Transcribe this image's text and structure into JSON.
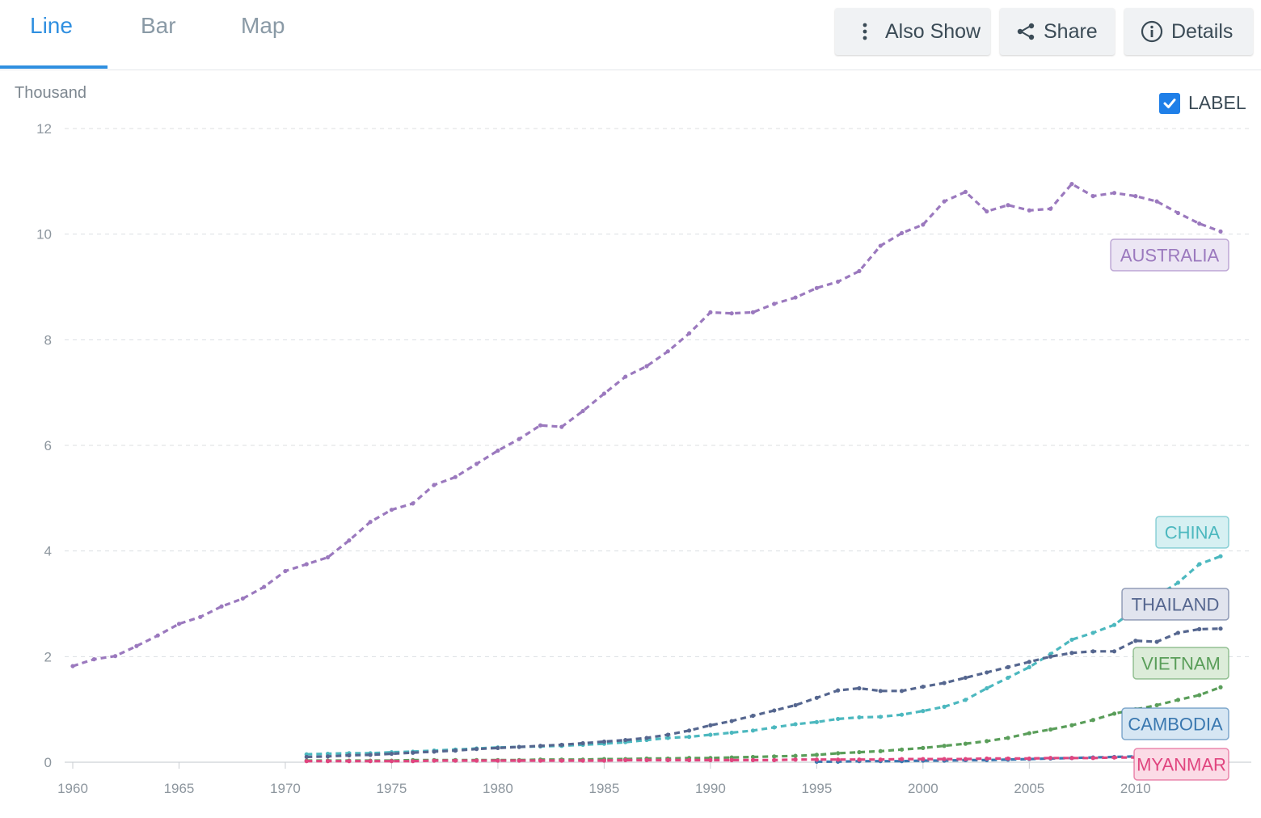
{
  "tabs": [
    {
      "label": "Line",
      "active": true
    },
    {
      "label": "Bar",
      "active": false
    },
    {
      "label": "Map",
      "active": false
    }
  ],
  "actions": {
    "also_show": "Also Show",
    "share": "Share",
    "details": "Details"
  },
  "label_toggle": {
    "label": "LABEL",
    "checked": true
  },
  "chart_data": {
    "type": "line",
    "unit": "Thousand",
    "ylim": [
      0,
      12
    ],
    "yticks": [
      0,
      2,
      4,
      6,
      8,
      10,
      12
    ],
    "xlim": [
      1960,
      2014
    ],
    "xticks": [
      1960,
      1965,
      1970,
      1975,
      1980,
      1985,
      1990,
      1995,
      2000,
      2005,
      2010
    ],
    "grid": true,
    "series": [
      {
        "name": "AUSTRALIA",
        "color": "#9b79be",
        "label_bg": "#ece6f4",
        "x": [
          1960,
          1961,
          1962,
          1963,
          1964,
          1965,
          1966,
          1967,
          1968,
          1969,
          1970,
          1971,
          1972,
          1973,
          1974,
          1975,
          1976,
          1977,
          1978,
          1979,
          1980,
          1981,
          1982,
          1983,
          1984,
          1985,
          1986,
          1987,
          1988,
          1989,
          1990,
          1991,
          1992,
          1993,
          1994,
          1995,
          1996,
          1997,
          1998,
          1999,
          2000,
          2001,
          2002,
          2003,
          2004,
          2005,
          2006,
          2007,
          2008,
          2009,
          2010,
          2011,
          2012,
          2013,
          2014
        ],
        "y": [
          1.82,
          1.95,
          2.01,
          2.2,
          2.4,
          2.62,
          2.75,
          2.95,
          3.1,
          3.32,
          3.62,
          3.75,
          3.88,
          4.2,
          4.55,
          4.78,
          4.9,
          5.25,
          5.4,
          5.65,
          5.9,
          6.12,
          6.38,
          6.35,
          6.65,
          6.98,
          7.3,
          7.5,
          7.78,
          8.12,
          8.52,
          8.5,
          8.52,
          8.68,
          8.8,
          8.98,
          9.1,
          9.3,
          9.78,
          10.02,
          10.18,
          10.62,
          10.8,
          10.43,
          10.55,
          10.45,
          10.48,
          10.95,
          10.72,
          10.78,
          10.72,
          10.62,
          10.4,
          10.2,
          10.05
        ]
      },
      {
        "name": "CHINA",
        "color": "#4cb8bf",
        "label_bg": "#d6f0f2",
        "x": [
          1971,
          1972,
          1973,
          1974,
          1975,
          1976,
          1977,
          1978,
          1979,
          1980,
          1981,
          1982,
          1983,
          1984,
          1985,
          1986,
          1987,
          1988,
          1989,
          1990,
          1991,
          1992,
          1993,
          1994,
          1995,
          1996,
          1997,
          1998,
          1999,
          2000,
          2001,
          2002,
          2003,
          2004,
          2005,
          2006,
          2007,
          2008,
          2009,
          2010,
          2011,
          2012,
          2013,
          2014
        ],
        "y": [
          0.15,
          0.16,
          0.17,
          0.17,
          0.19,
          0.2,
          0.22,
          0.24,
          0.26,
          0.28,
          0.29,
          0.3,
          0.31,
          0.33,
          0.35,
          0.38,
          0.42,
          0.46,
          0.48,
          0.52,
          0.56,
          0.6,
          0.66,
          0.72,
          0.76,
          0.82,
          0.85,
          0.86,
          0.9,
          0.97,
          1.05,
          1.18,
          1.4,
          1.6,
          1.8,
          2.05,
          2.32,
          2.45,
          2.6,
          2.9,
          3.15,
          3.4,
          3.75,
          3.9
        ]
      },
      {
        "name": "THAILAND",
        "color": "#55668f",
        "label_bg": "#e1e4ee",
        "x": [
          1971,
          1972,
          1973,
          1974,
          1975,
          1976,
          1977,
          1978,
          1979,
          1980,
          1981,
          1982,
          1983,
          1984,
          1985,
          1986,
          1987,
          1988,
          1989,
          1990,
          1991,
          1992,
          1993,
          1994,
          1995,
          1996,
          1997,
          1998,
          1999,
          2000,
          2001,
          2002,
          2003,
          2004,
          2005,
          2006,
          2007,
          2008,
          2009,
          2010,
          2011,
          2012,
          2013,
          2014
        ],
        "y": [
          0.1,
          0.11,
          0.13,
          0.14,
          0.16,
          0.18,
          0.2,
          0.22,
          0.25,
          0.27,
          0.29,
          0.31,
          0.33,
          0.36,
          0.39,
          0.42,
          0.46,
          0.52,
          0.6,
          0.7,
          0.78,
          0.88,
          0.98,
          1.08,
          1.22,
          1.36,
          1.4,
          1.35,
          1.35,
          1.43,
          1.5,
          1.6,
          1.7,
          1.8,
          1.9,
          2.0,
          2.07,
          2.1,
          2.1,
          2.3,
          2.28,
          2.45,
          2.52,
          2.53
        ]
      },
      {
        "name": "VIETNAM",
        "color": "#5a9e5a",
        "label_bg": "#dcecd9",
        "x": [
          1971,
          1972,
          1973,
          1974,
          1975,
          1976,
          1977,
          1978,
          1979,
          1980,
          1981,
          1982,
          1983,
          1984,
          1985,
          1986,
          1987,
          1988,
          1989,
          1990,
          1991,
          1992,
          1993,
          1994,
          1995,
          1996,
          1997,
          1998,
          1999,
          2000,
          2001,
          2002,
          2003,
          2004,
          2005,
          2006,
          2007,
          2008,
          2009,
          2010,
          2011,
          2012,
          2013,
          2014
        ],
        "y": [
          0.03,
          0.03,
          0.03,
          0.03,
          0.03,
          0.04,
          0.04,
          0.04,
          0.04,
          0.04,
          0.04,
          0.05,
          0.05,
          0.05,
          0.06,
          0.06,
          0.07,
          0.07,
          0.08,
          0.08,
          0.09,
          0.1,
          0.11,
          0.12,
          0.14,
          0.17,
          0.19,
          0.21,
          0.24,
          0.27,
          0.31,
          0.35,
          0.4,
          0.46,
          0.55,
          0.62,
          0.7,
          0.8,
          0.92,
          1.0,
          1.08,
          1.18,
          1.27,
          1.42
        ]
      },
      {
        "name": "CAMBODIA",
        "color": "#3a78b0",
        "label_bg": "#d6e6f3",
        "x": [
          1995,
          1996,
          1997,
          1998,
          1999,
          2000,
          2001,
          2002,
          2003,
          2004,
          2005,
          2006,
          2007,
          2008,
          2009,
          2010,
          2011,
          2012,
          2013,
          2014
        ],
        "y": [
          0.01,
          0.01,
          0.02,
          0.02,
          0.02,
          0.03,
          0.03,
          0.04,
          0.04,
          0.05,
          0.06,
          0.07,
          0.08,
          0.09,
          0.1,
          0.11,
          0.13,
          0.15,
          0.18,
          0.21
        ]
      },
      {
        "name": "MYANMAR",
        "color": "#e0457f",
        "label_bg": "#fbdbe6",
        "x": [
          1971,
          1972,
          1973,
          1974,
          1975,
          1976,
          1977,
          1978,
          1979,
          1980,
          1981,
          1982,
          1983,
          1984,
          1985,
          1986,
          1987,
          1988,
          1989,
          1990,
          1991,
          1992,
          1993,
          1994,
          1995,
          1996,
          1997,
          1998,
          1999,
          2000,
          2001,
          2002,
          2003,
          2004,
          2005,
          2006,
          2007,
          2008,
          2009,
          2010,
          2011,
          2012,
          2013,
          2014
        ],
        "y": [
          0.02,
          0.02,
          0.02,
          0.02,
          0.02,
          0.02,
          0.03,
          0.03,
          0.03,
          0.03,
          0.03,
          0.03,
          0.03,
          0.03,
          0.03,
          0.04,
          0.04,
          0.04,
          0.04,
          0.04,
          0.04,
          0.04,
          0.04,
          0.05,
          0.05,
          0.05,
          0.05,
          0.05,
          0.06,
          0.06,
          0.06,
          0.06,
          0.07,
          0.07,
          0.07,
          0.08,
          0.08,
          0.08,
          0.09,
          0.09,
          0.1,
          0.1,
          0.11,
          0.12
        ]
      }
    ]
  }
}
